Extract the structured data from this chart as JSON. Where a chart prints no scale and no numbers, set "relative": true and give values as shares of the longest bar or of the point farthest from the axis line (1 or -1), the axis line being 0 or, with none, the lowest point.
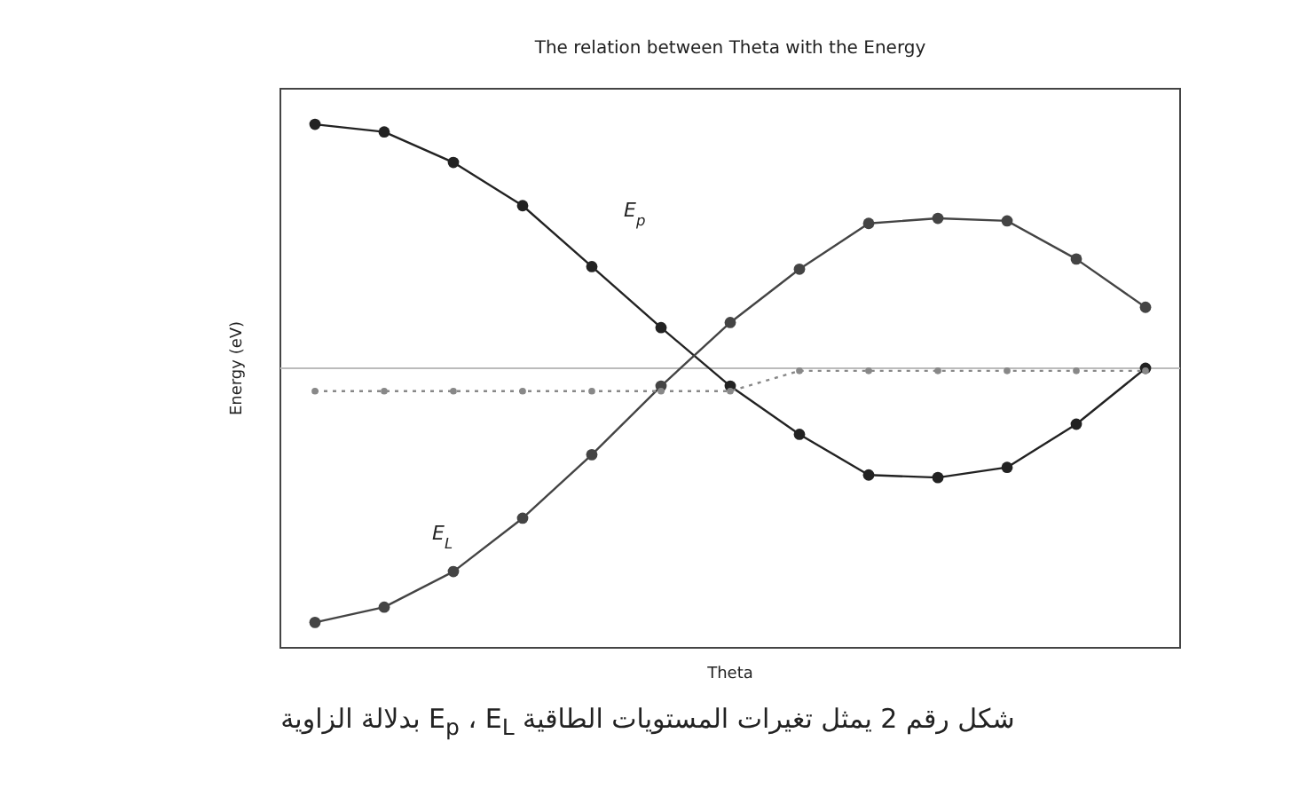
{
  "chart_data": {
    "type": "line",
    "title": "The relation between Theta with the Energy",
    "xlabel": "Theta",
    "ylabel": "Energy (eV)",
    "relative": true,
    "marker": "circle",
    "legend": false,
    "categories": [
      null,
      null,
      null,
      null,
      null,
      null,
      null,
      null,
      null,
      null,
      null,
      null,
      null
    ],
    "series": [
      {
        "name": "E$_{p}$",
        "color": "#222222",
        "values": [
          0.96,
          0.93,
          0.81,
          0.64,
          0.4,
          0.16,
          -0.07,
          -0.26,
          -0.42,
          -0.43,
          -0.39,
          -0.22,
          0.0
        ]
      },
      {
        "name": "E$_{L}$",
        "color": "#444444",
        "values": [
          -1.0,
          -0.94,
          -0.8,
          -0.59,
          -0.34,
          -0.07,
          0.18,
          0.39,
          0.57,
          0.59,
          0.58,
          0.43,
          0.24
        ]
      },
      {
        "type": "line",
        "line_style": "dotted",
        "marker": "circle",
        "color": "#888888",
        "values": [
          -0.09,
          -0.09,
          -0.09,
          -0.09,
          -0.09,
          -0.09,
          -0.09,
          -0.01,
          -0.01,
          -0.01,
          -0.01,
          -0.01,
          -0.01
        ]
      }
    ],
    "annotations": [
      "شكل رقم 2 يمثل تغيرات المستويات الطاقية E$_{p}$ ، E$_{L}$ بدلالة الزاوية"
    ]
  }
}
